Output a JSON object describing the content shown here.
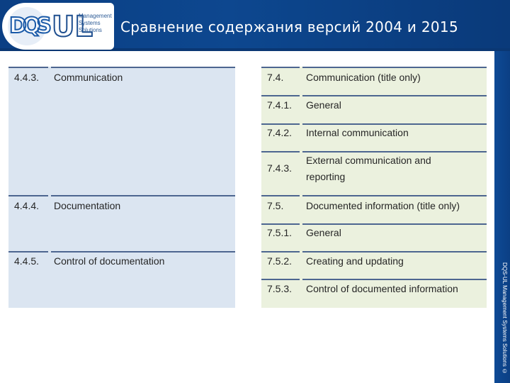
{
  "header": {
    "title": "Сравнение содержания версий 2004 и 2015",
    "logo_letters": "DQS",
    "ul_mark": "UL",
    "ums_lines": [
      "Management",
      "Systems",
      "Solutions"
    ]
  },
  "side_text": "DQS-UL Management Systems Solutions ©",
  "left_table": {
    "rows": [
      {
        "num": "4.4.3.",
        "text": "Communication"
      },
      {
        "num": "4.4.4.",
        "text": "Documentation"
      },
      {
        "num": "4.4.5.",
        "text": "Control of documentation"
      }
    ]
  },
  "right_table": {
    "rows": [
      {
        "num": "7.4.",
        "text": "Communication (title only)"
      },
      {
        "num": "7.4.1.",
        "text": "General"
      },
      {
        "num": "7.4.2.",
        "text": "Internal communication"
      },
      {
        "num": "7.4.3.",
        "text_line1": "External communication and",
        "text_line2": "reporting"
      },
      {
        "num": "7.5.",
        "text": "Documented information (title only)"
      },
      {
        "num": "7.5.1.",
        "text": "General"
      },
      {
        "num": "7.5.2.",
        "text": "Creating and updating"
      },
      {
        "num": "7.5.3.",
        "text": "Control of documented information"
      }
    ]
  },
  "colors": {
    "header_blue": "#0d478f",
    "left_table_bg": "#dbe5f1",
    "right_table_bg": "#ebf1de",
    "rule": "#4d6690"
  }
}
